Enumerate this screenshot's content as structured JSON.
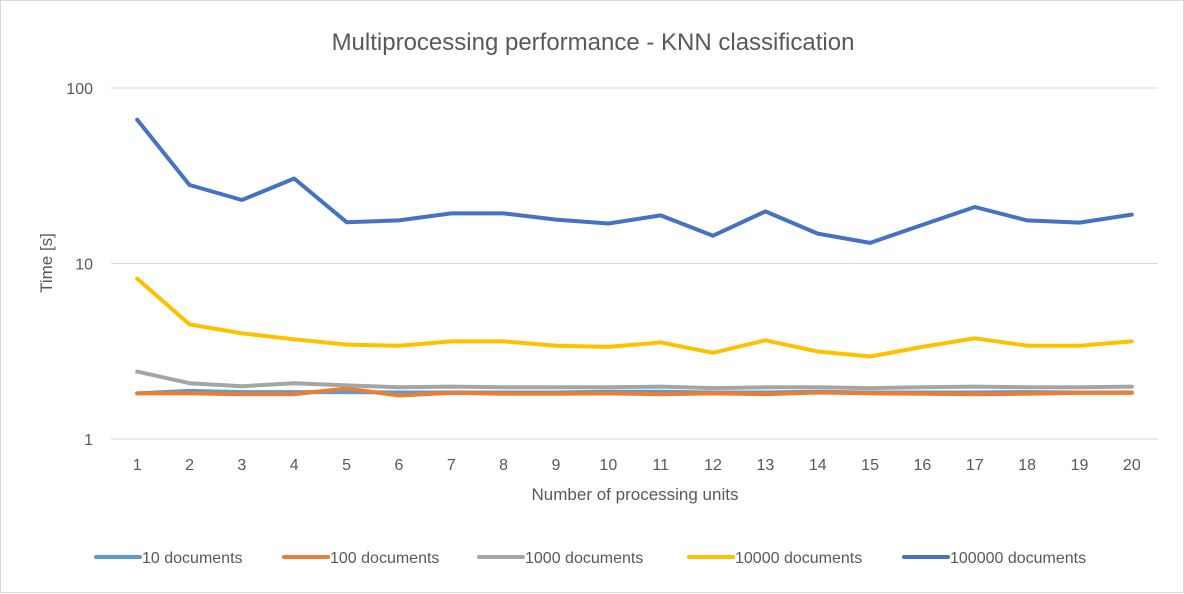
{
  "chart_data": {
    "type": "line",
    "title": "Multiprocessing performance - KNN classification",
    "xlabel": "Number of processing units",
    "ylabel": "Time [s]",
    "yscale": "log",
    "ylim": [
      1,
      100
    ],
    "yticks": [
      1,
      10,
      100
    ],
    "ytick_labels": [
      "1",
      "10",
      "100"
    ],
    "grid": true,
    "legend_position": "bottom",
    "categories": [
      "1",
      "2",
      "3",
      "4",
      "5",
      "6",
      "7",
      "8",
      "9",
      "10",
      "11",
      "12",
      "13",
      "14",
      "15",
      "16",
      "17",
      "18",
      "19",
      "20"
    ],
    "series": [
      {
        "name": "10 documents",
        "color": "#5B9BD5",
        "values": [
          1.82,
          1.88,
          1.85,
          1.85,
          1.85,
          1.84,
          1.84,
          1.84,
          1.84,
          1.86,
          1.86,
          1.84,
          1.84,
          1.86,
          1.84,
          1.84,
          1.84,
          1.85,
          1.84,
          1.84
        ]
      },
      {
        "name": "100 documents",
        "color": "#ED7D31",
        "values": [
          1.82,
          1.82,
          1.8,
          1.8,
          1.94,
          1.77,
          1.83,
          1.81,
          1.81,
          1.82,
          1.8,
          1.82,
          1.8,
          1.84,
          1.82,
          1.81,
          1.8,
          1.81,
          1.83,
          1.83
        ]
      },
      {
        "name": "1000 documents",
        "color": "#A5A5A5",
        "values": [
          2.42,
          2.08,
          2.0,
          2.08,
          2.02,
          1.97,
          1.99,
          1.97,
          1.97,
          1.97,
          1.99,
          1.95,
          1.97,
          1.97,
          1.95,
          1.97,
          1.99,
          1.97,
          1.97,
          1.99
        ]
      },
      {
        "name": "10000 documents",
        "color": "#FFC000",
        "values": [
          8.2,
          4.5,
          4.0,
          3.7,
          3.45,
          3.4,
          3.6,
          3.6,
          3.4,
          3.35,
          3.55,
          3.1,
          3.65,
          3.15,
          2.95,
          3.35,
          3.75,
          3.4,
          3.4,
          3.6
        ]
      },
      {
        "name": "100000 documents",
        "color": "#4472C4",
        "values": [
          66,
          28,
          23,
          30.5,
          17.2,
          17.6,
          19.3,
          19.3,
          17.8,
          16.9,
          18.8,
          14.4,
          19.8,
          14.8,
          13.1,
          16.6,
          21,
          17.6,
          17.1,
          19
        ]
      }
    ]
  }
}
